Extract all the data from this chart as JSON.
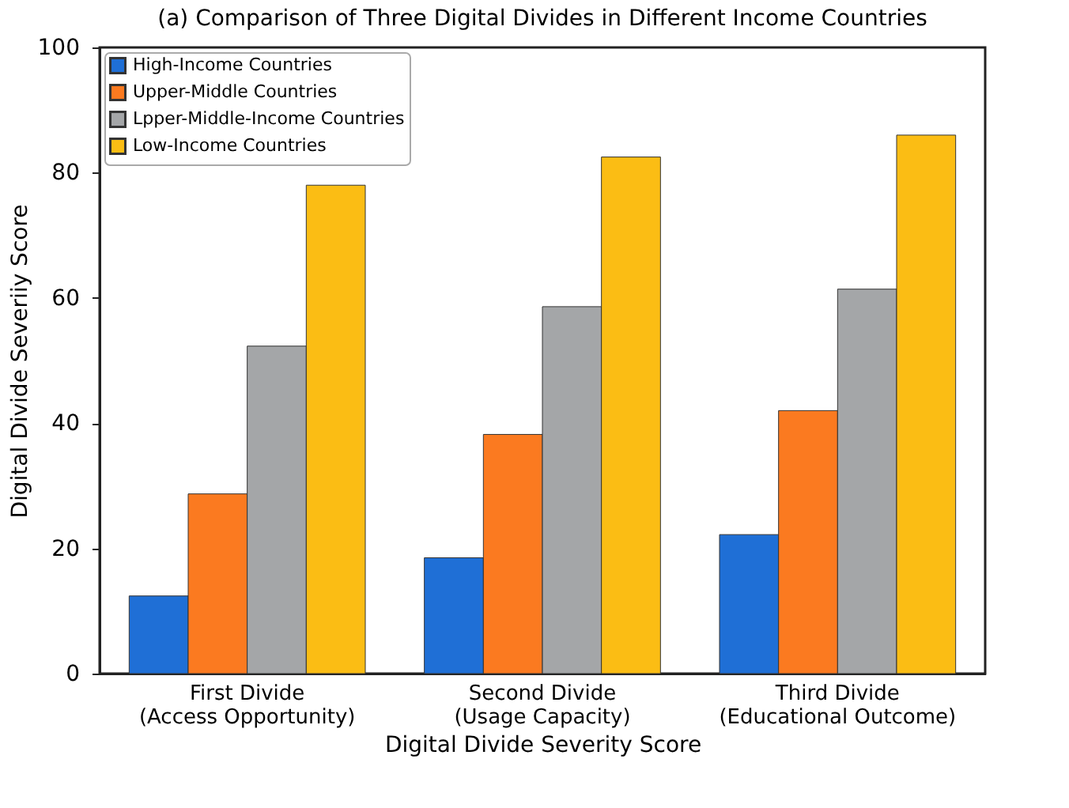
{
  "chart_data": {
    "type": "bar",
    "title": "(a) Comparison of Three Digital Divides in Different Income Countries",
    "xlabel": "Digital Divide Severity Score",
    "ylabel": "Digital Divide Severiiy Score",
    "categories": [
      "First Divide\n(Access Opportunity)",
      "Second Divide\n(Usage Capacity)",
      "Third Divide\n(Educational Outcome)"
    ],
    "series": [
      {
        "name": "High-Income Countries",
        "color": "#1f6fd6",
        "values": [
          12.4,
          18.5,
          22.2
        ]
      },
      {
        "name": "Upper-Middle Countries",
        "color": "#fb7a20",
        "values": [
          28.7,
          38.2,
          42.0
        ]
      },
      {
        "name": "Lpper-Middle-Income Countries",
        "color": "#a4a6a8",
        "values": [
          52.3,
          58.6,
          61.4
        ]
      },
      {
        "name": "Low-Income Countries",
        "color": "#fbbd14",
        "values": [
          78.0,
          82.5,
          86.0
        ]
      }
    ],
    "ylim": [
      0,
      100
    ],
    "yticks": [
      0,
      20,
      40,
      60,
      80,
      100
    ],
    "grid": false,
    "legend": "top left"
  }
}
